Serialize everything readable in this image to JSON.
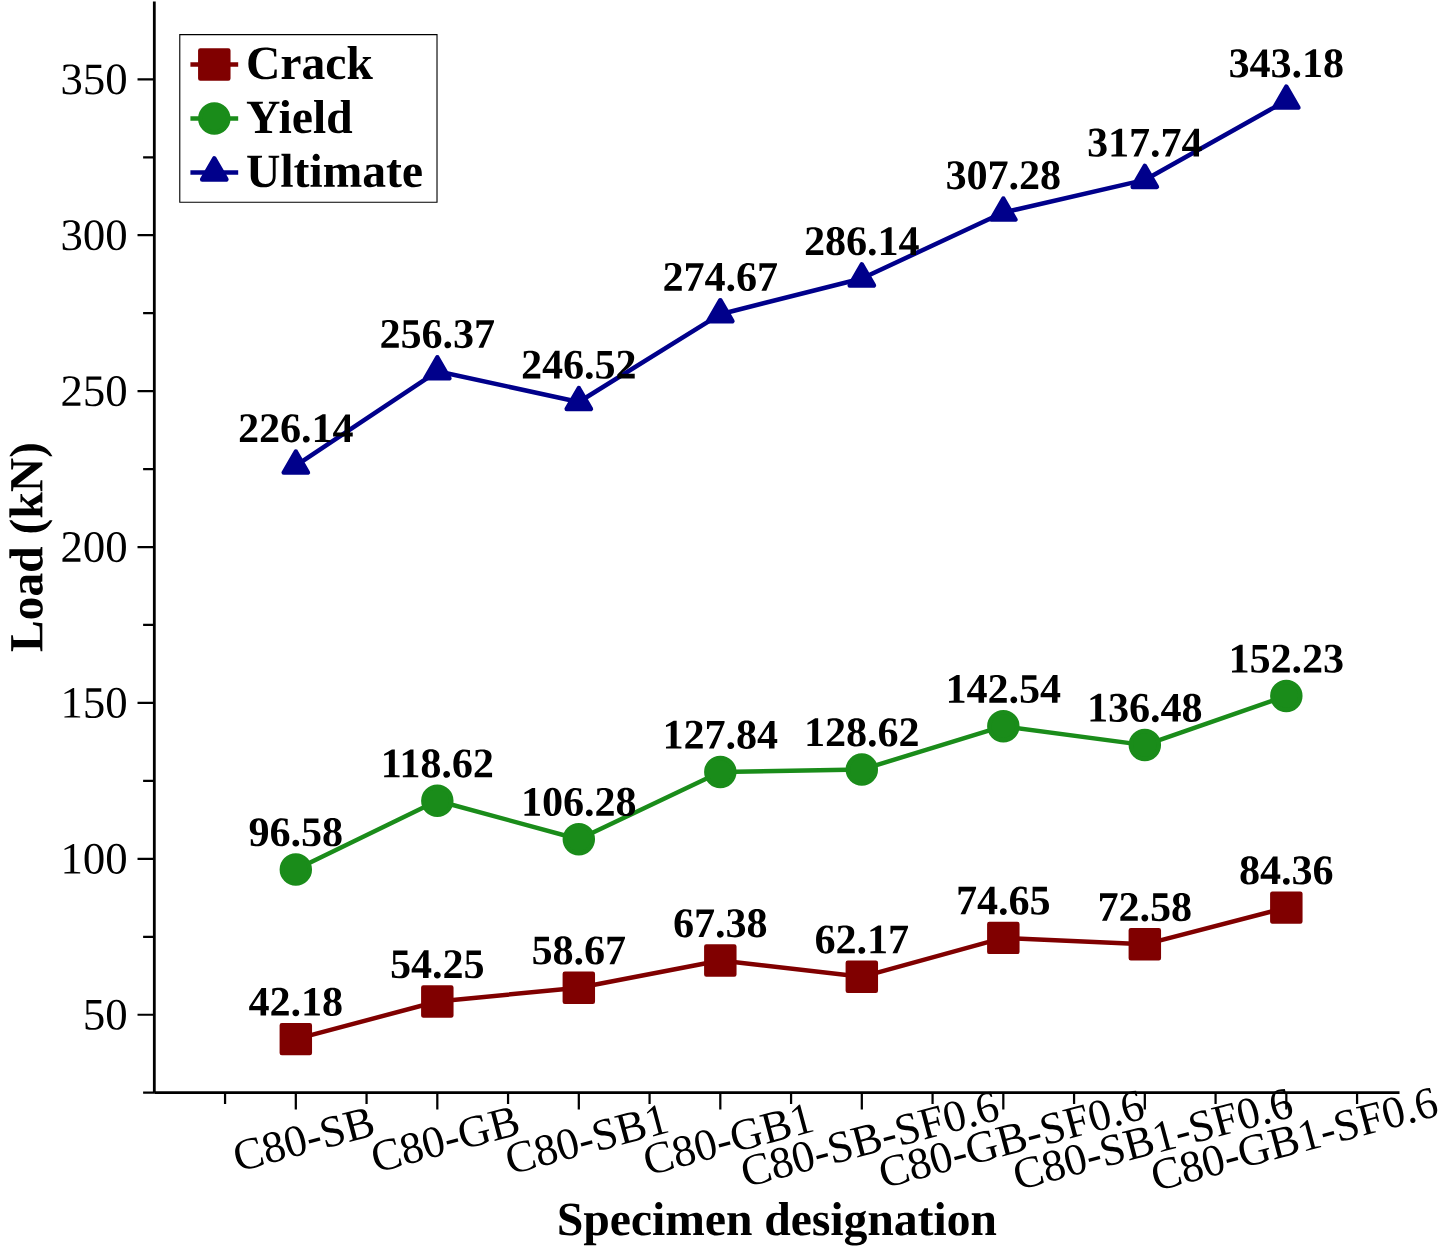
{
  "chart_data": {
    "type": "line",
    "xlabel": "Specimen designation",
    "ylabel": "Load (kN)",
    "categories": [
      "C80-SB",
      "C80-GB",
      "C80-SB1",
      "C80-GB1",
      "C80-SB-SF0.6",
      "C80-GB-SF0.6",
      "C80-SB1-SF0.6",
      "C80-GB1-SF0.6"
    ],
    "series": [
      {
        "name": "Crack",
        "color": "#800000",
        "marker": "square",
        "values": [
          42.18,
          54.25,
          58.67,
          67.38,
          62.17,
          74.65,
          72.58,
          84.36
        ]
      },
      {
        "name": "Yield",
        "color": "#1a8c1a",
        "marker": "circle",
        "values": [
          96.58,
          118.62,
          106.28,
          127.84,
          128.62,
          142.54,
          136.48,
          152.23
        ]
      },
      {
        "name": "Ultimate",
        "color": "#00008b",
        "marker": "triangle",
        "values": [
          226.14,
          256.37,
          246.52,
          274.67,
          286.14,
          307.28,
          317.74,
          343.18
        ]
      }
    ],
    "ylim": [
      25,
      375
    ],
    "yticks": [
      50,
      100,
      150,
      200,
      250,
      300,
      350
    ],
    "data_labels": true,
    "legend": "top left",
    "grid": false,
    "line_style": "solid"
  }
}
